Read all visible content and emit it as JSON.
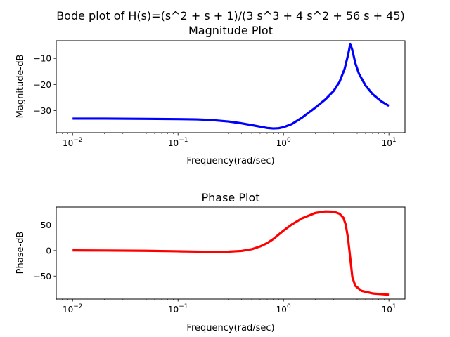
{
  "figure_title": "Bode plot of H(s)=(s^2 + s + 1)/(3 s^3 + 4 s^2 + 56 s + 45)",
  "chart_data": [
    {
      "type": "line",
      "title": "Magnitude Plot",
      "xlabel": "Frequency(rad/sec)",
      "ylabel": "Magnitude-dB",
      "xscale": "log",
      "xlim": [
        0.007,
        14.2
      ],
      "ylim": [
        -38.5,
        -3.2
      ],
      "xticks": [
        0.01,
        0.1,
        1,
        10
      ],
      "xtick_labels": [
        {
          "base": "10",
          "exp": "−2"
        },
        {
          "base": "10",
          "exp": "−1"
        },
        {
          "base": "10",
          "exp": "0"
        },
        {
          "base": "10",
          "exp": "1"
        }
      ],
      "yticks": [
        -30,
        -20,
        -10
      ],
      "ytick_labels": [
        "−30",
        "−20",
        "−10"
      ],
      "grid": false,
      "series": [
        {
          "color": "#0000ff",
          "x": [
            0.01,
            0.02,
            0.05,
            0.1,
            0.15,
            0.2,
            0.3,
            0.4,
            0.5,
            0.6,
            0.7,
            0.8,
            0.9,
            1.0,
            1.2,
            1.5,
            2.0,
            2.5,
            3.0,
            3.4,
            3.8,
            4.1,
            4.3,
            4.5,
            4.8,
            5.2,
            6.0,
            7.0,
            8.5,
            10.0
          ],
          "y": [
            -33.1,
            -33.1,
            -33.2,
            -33.3,
            -33.4,
            -33.6,
            -34.2,
            -34.9,
            -35.6,
            -36.2,
            -36.7,
            -36.9,
            -36.8,
            -36.4,
            -35.2,
            -32.7,
            -28.9,
            -25.7,
            -22.4,
            -19.0,
            -14.0,
            -8.6,
            -4.4,
            -6.8,
            -11.8,
            -15.9,
            -20.4,
            -23.7,
            -26.5,
            -28.2
          ]
        }
      ]
    },
    {
      "type": "line",
      "title": "Phase Plot",
      "xlabel": "Frequency(rad/sec)",
      "ylabel": "Phase-dB",
      "xscale": "log",
      "xlim": [
        0.007,
        14.2
      ],
      "ylim": [
        -95,
        85
      ],
      "xticks": [
        0.01,
        0.1,
        1,
        10
      ],
      "xtick_labels": [
        {
          "base": "10",
          "exp": "−2"
        },
        {
          "base": "10",
          "exp": "−1"
        },
        {
          "base": "10",
          "exp": "0"
        },
        {
          "base": "10",
          "exp": "1"
        }
      ],
      "yticks": [
        -50,
        0,
        50
      ],
      "ytick_labels": [
        "−50",
        "0",
        "50"
      ],
      "grid": false,
      "series": [
        {
          "color": "#ff0000",
          "x": [
            0.01,
            0.02,
            0.05,
            0.1,
            0.15,
            0.2,
            0.3,
            0.4,
            0.5,
            0.6,
            0.7,
            0.8,
            1.0,
            1.2,
            1.5,
            2.0,
            2.5,
            3.0,
            3.4,
            3.7,
            3.9,
            4.1,
            4.3,
            4.5,
            4.8,
            5.5,
            7.0,
            10.0
          ],
          "y": [
            0.3,
            0.1,
            -0.5,
            -1.5,
            -2.2,
            -2.5,
            -2.3,
            -0.8,
            2.6,
            8.0,
            14.5,
            22.5,
            39.0,
            51.0,
            63.0,
            73.5,
            76.5,
            76.0,
            72.0,
            64.0,
            50.0,
            23.0,
            -15.0,
            -52.0,
            -69.0,
            -79.0,
            -84.0,
            -86.5
          ]
        }
      ]
    }
  ]
}
